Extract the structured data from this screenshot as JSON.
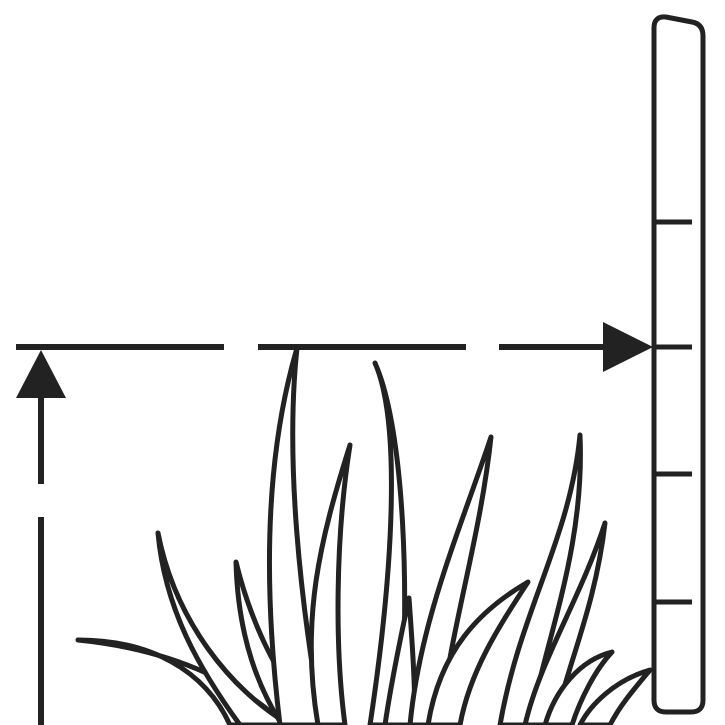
{
  "diagram": {
    "subject": "grass-height-measurement",
    "icons": [
      "ruler-icon",
      "grass-icon",
      "arrow-up-icon",
      "arrow-right-icon",
      "height-guide-line"
    ],
    "colors": {
      "ink": "#222222",
      "background": "#ffffff"
    },
    "ruler": {
      "tick_count": 4,
      "highlighted_tick": 2
    }
  }
}
